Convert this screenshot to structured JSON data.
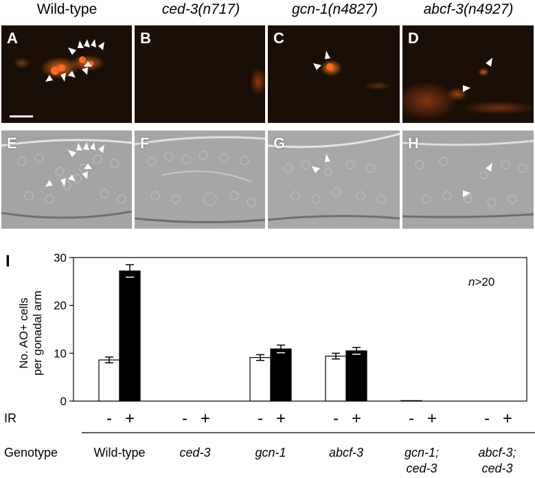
{
  "headers": [
    {
      "text": "Wild-type",
      "italic": false
    },
    {
      "text": "ced-3(n717)",
      "italic": true
    },
    {
      "text": "gcn-1(n4827)",
      "italic": true
    },
    {
      "text": "abcf-3(n4927)",
      "italic": true
    }
  ],
  "panels": {
    "fluorescence": [
      "A",
      "B",
      "C",
      "D"
    ],
    "dic": [
      "E",
      "F",
      "G",
      "H"
    ]
  },
  "colors": {
    "fluorescence_bg": "#1a0f06",
    "fluorescence_signal": "#ff6a1a",
    "dic_bg": "#9a9a9a",
    "arrowhead": "#ffffff",
    "bar_minus": "#ffffff",
    "bar_plus": "#000000"
  },
  "chart_label": "I",
  "chart_data": {
    "type": "bar",
    "ylabel": [
      "No. AO+ cells",
      "per gonadal arm"
    ],
    "ylim": [
      0,
      30
    ],
    "yticks": [
      0,
      10,
      20,
      30
    ],
    "annotation": {
      "n": "n",
      "rest": ">20"
    },
    "ir_label": "IR",
    "genotype_label": "Genotype",
    "groups": [
      {
        "genotype": [
          "Wild-type"
        ],
        "italic": false,
        "minus": 8.6,
        "minus_err": 0.6,
        "plus": 27.2,
        "plus_err": 1.3
      },
      {
        "genotype": [
          "ced-3"
        ],
        "italic": true,
        "minus": 0,
        "minus_err": 0,
        "plus": 0,
        "plus_err": 0
      },
      {
        "genotype": [
          "gcn-1"
        ],
        "italic": true,
        "minus": 9.1,
        "minus_err": 0.6,
        "plus": 10.9,
        "plus_err": 0.8
      },
      {
        "genotype": [
          "abcf-3"
        ],
        "italic": true,
        "minus": 9.4,
        "minus_err": 0.6,
        "plus": 10.5,
        "plus_err": 0.7
      },
      {
        "genotype": [
          "gcn-1;",
          "ced-3"
        ],
        "italic": true,
        "minus": 0.1,
        "minus_err": 0,
        "plus": 0,
        "plus_err": 0
      },
      {
        "genotype": [
          "abcf-3;",
          "ced-3"
        ],
        "italic": true,
        "minus": 0,
        "minus_err": 0,
        "plus": 0,
        "plus_err": 0
      }
    ],
    "ir_minus": "-",
    "ir_plus": "+"
  }
}
